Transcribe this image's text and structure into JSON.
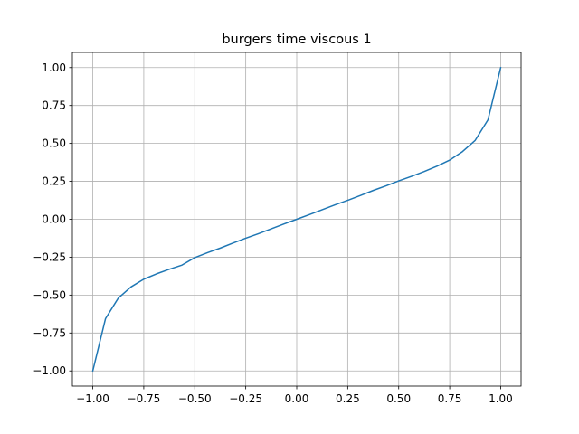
{
  "chart_data": {
    "type": "line",
    "title": "burgers time viscous 1",
    "xlabel": "",
    "ylabel": "",
    "xlim": [
      -1.1,
      1.1
    ],
    "ylim": [
      -1.1,
      1.1
    ],
    "grid": true,
    "xticks": [
      -1.0,
      -0.75,
      -0.5,
      -0.25,
      0.0,
      0.25,
      0.5,
      0.75,
      1.0
    ],
    "yticks": [
      -1.0,
      -0.75,
      -0.5,
      -0.25,
      0.0,
      0.25,
      0.5,
      0.75,
      1.0
    ],
    "xtick_labels": [
      "−1.00",
      "−0.75",
      "−0.50",
      "−0.25",
      "0.00",
      "0.25",
      "0.50",
      "0.75",
      "1.00"
    ],
    "ytick_labels": [
      "−1.00",
      "−0.75",
      "−0.50",
      "−0.25",
      "0.00",
      "0.25",
      "0.50",
      "0.75",
      "1.00"
    ],
    "colors": {
      "line": "#1f77b4",
      "grid": "#b0b0b0",
      "axes": "#000000"
    },
    "series": [
      {
        "x": [
          -1.0,
          -0.9375,
          -0.875,
          -0.8125,
          -0.75,
          -0.6875,
          -0.625,
          -0.5625,
          -0.5,
          -0.4375,
          -0.375,
          -0.3125,
          -0.25,
          -0.1875,
          -0.125,
          -0.0625,
          0.0,
          0.0625,
          0.125,
          0.1875,
          0.25,
          0.3125,
          0.375,
          0.4375,
          0.5,
          0.5625,
          0.625,
          0.6875,
          0.75,
          0.8125,
          0.875,
          0.9375,
          1.0
        ],
        "y": [
          -1.0,
          -0.655,
          -0.52,
          -0.446,
          -0.395,
          -0.36,
          -0.33,
          -0.302,
          -0.253,
          -0.22,
          -0.19,
          -0.157,
          -0.125,
          -0.095,
          -0.063,
          -0.031,
          0.0,
          0.031,
          0.063,
          0.095,
          0.125,
          0.157,
          0.19,
          0.22,
          0.253,
          0.283,
          0.315,
          0.35,
          0.39,
          0.446,
          0.52,
          0.655,
          1.0
        ]
      }
    ]
  }
}
